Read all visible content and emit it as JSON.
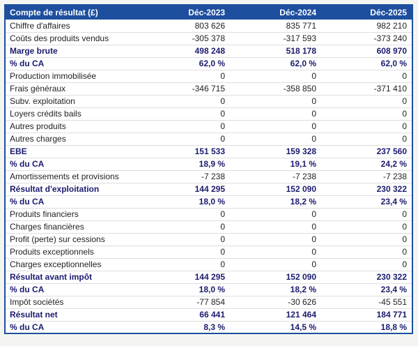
{
  "colors": {
    "header_bg": "#1d4f9e",
    "header_text": "#ffffff",
    "emphasis_text": "#1b1b6f",
    "body_text": "#222222",
    "table_border": "#1d4f9e",
    "row_separator": "#dedede"
  },
  "chart_data": {
    "type": "table",
    "title": "Compte de résultat (£)",
    "columns": [
      "Déc-2023",
      "Déc-2024",
      "Déc-2025"
    ],
    "rows": [
      {
        "label": "Chiffre d'affaires",
        "values": [
          "803 626",
          "835 771",
          "982 210"
        ],
        "bold": false
      },
      {
        "label": "Coûts des produits vendus",
        "values": [
          "-305 378",
          "-317 593",
          "-373 240"
        ],
        "bold": false
      },
      {
        "label": "Marge brute",
        "values": [
          "498 248",
          "518 178",
          "608 970"
        ],
        "bold": true
      },
      {
        "label": "% du CA",
        "values": [
          "62,0 %",
          "62,0 %",
          "62,0 %"
        ],
        "bold": true
      },
      {
        "label": "Production immobilisée",
        "values": [
          "0",
          "0",
          "0"
        ],
        "bold": false
      },
      {
        "label": "Frais généraux",
        "values": [
          "-346 715",
          "-358 850",
          "-371 410"
        ],
        "bold": false
      },
      {
        "label": "Subv. exploitation",
        "values": [
          "0",
          "0",
          "0"
        ],
        "bold": false
      },
      {
        "label": "Loyers crédits bails",
        "values": [
          "0",
          "0",
          "0"
        ],
        "bold": false
      },
      {
        "label": "Autres produits",
        "values": [
          "0",
          "0",
          "0"
        ],
        "bold": false
      },
      {
        "label": "Autres charges",
        "values": [
          "0",
          "0",
          "0"
        ],
        "bold": false
      },
      {
        "label": "EBE",
        "values": [
          "151 533",
          "159 328",
          "237 560"
        ],
        "bold": true
      },
      {
        "label": "% du CA",
        "values": [
          "18,9 %",
          "19,1 %",
          "24,2 %"
        ],
        "bold": true
      },
      {
        "label": "Amortissements et provisions",
        "values": [
          "-7 238",
          "-7 238",
          "-7 238"
        ],
        "bold": false
      },
      {
        "label": "Résultat d'exploitation",
        "values": [
          "144 295",
          "152 090",
          "230 322"
        ],
        "bold": true
      },
      {
        "label": "% du CA",
        "values": [
          "18,0 %",
          "18,2 %",
          "23,4 %"
        ],
        "bold": true
      },
      {
        "label": "Produits financiers",
        "values": [
          "0",
          "0",
          "0"
        ],
        "bold": false
      },
      {
        "label": "Charges financières",
        "values": [
          "0",
          "0",
          "0"
        ],
        "bold": false
      },
      {
        "label": "Profit (perte) sur cessions",
        "values": [
          "0",
          "0",
          "0"
        ],
        "bold": false
      },
      {
        "label": "Produits exceptionnels",
        "values": [
          "0",
          "0",
          "0"
        ],
        "bold": false
      },
      {
        "label": "Charges exceptionnelles",
        "values": [
          "0",
          "0",
          "0"
        ],
        "bold": false
      },
      {
        "label": "Résultat avant impôt",
        "values": [
          "144 295",
          "152 090",
          "230 322"
        ],
        "bold": true
      },
      {
        "label": "% du CA",
        "values": [
          "18,0 %",
          "18,2 %",
          "23,4 %"
        ],
        "bold": true
      },
      {
        "label": "Impôt sociétés",
        "values": [
          "-77 854",
          "-30 626",
          "-45 551"
        ],
        "bold": false
      },
      {
        "label": "Résultat net",
        "values": [
          "66 441",
          "121 464",
          "184 771"
        ],
        "bold": true
      },
      {
        "label": "% du CA",
        "values": [
          "8,3 %",
          "14,5 %",
          "18,8 %"
        ],
        "bold": true
      }
    ]
  }
}
